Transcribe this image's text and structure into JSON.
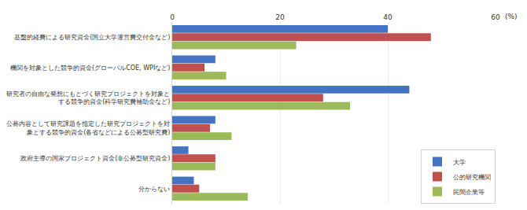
{
  "chart_data": {
    "type": "bar",
    "orientation": "horizontal",
    "categories": [
      "基盤的経費による研究資金(国立大学運営費交付金など)",
      "機関を対象とした競争的資金(グローバルCOE, WPIなど)",
      "研究者の自由な発想にもとづく研究プロジェクトを対象と\nする競争的資金(科学研究費補助金など)",
      "公募内容として研究課題を指定した研究プロジェクトを対\n象とする競争的資金(各省などによる公募型研究費)",
      "政府主導の国家プロジェクト資金(非公募型研究資金)",
      "分からない"
    ],
    "series": [
      {
        "name": "大学",
        "color": "#4472C4",
        "values": [
          40,
          8,
          44,
          8,
          3,
          4
        ]
      },
      {
        "name": "公的研究機関",
        "color": "#C0504D",
        "values": [
          48,
          6,
          28,
          7,
          8,
          5
        ]
      },
      {
        "name": "民間企業等",
        "color": "#9BBB59",
        "values": [
          23,
          10,
          33,
          11,
          8,
          14
        ]
      }
    ],
    "xlabel": "(%)",
    "xlim": [
      0,
      60
    ],
    "xticks": [
      0,
      20,
      40,
      60
    ],
    "grid": true,
    "legend": "lower right"
  }
}
